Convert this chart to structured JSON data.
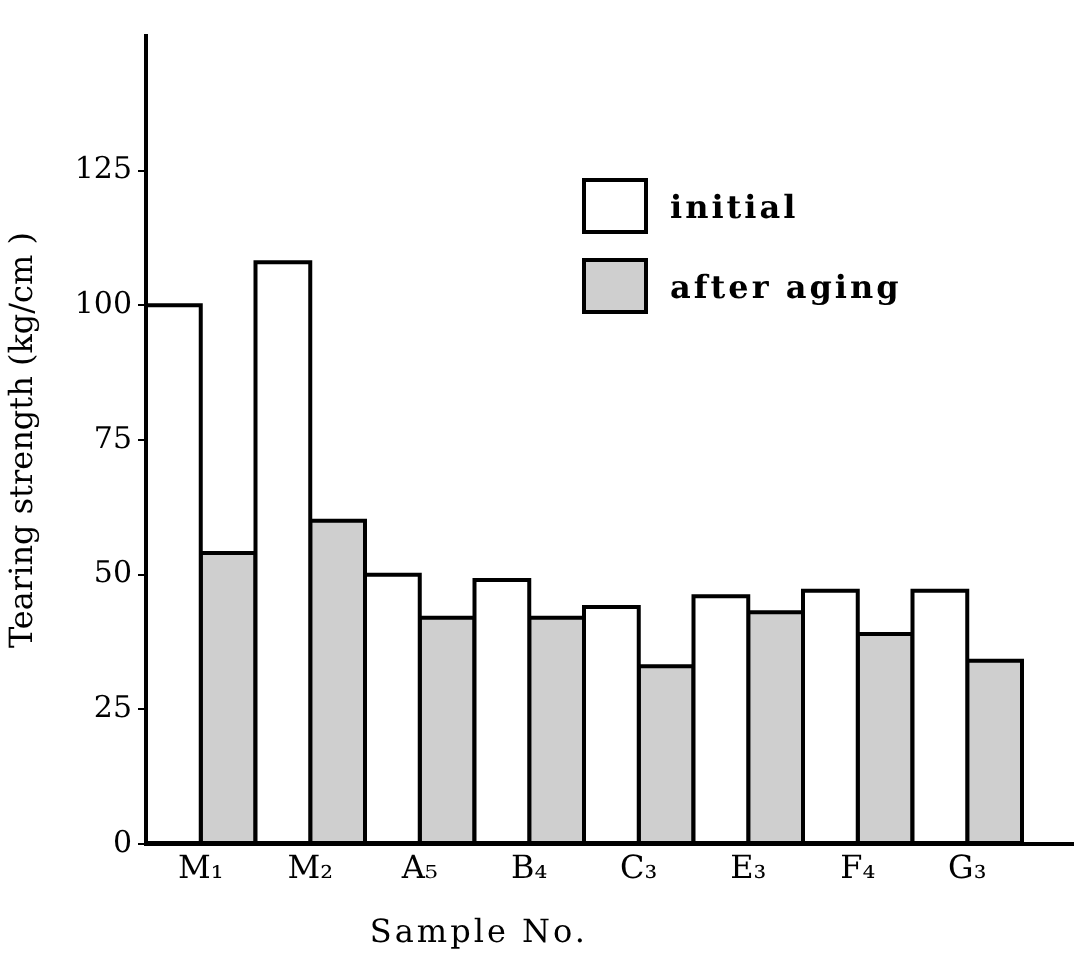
{
  "chart_data": {
    "type": "bar",
    "xlabel": "Sample No.",
    "ylabel": "Tearing strength (kg/cm )",
    "categories": [
      "M₁",
      "M₂",
      "A₅",
      "B₄",
      "C₃",
      "E₃",
      "F₄",
      "G₃"
    ],
    "series": [
      {
        "name": "initial",
        "color": "#ffffff",
        "values": [
          100,
          108,
          50,
          49,
          44,
          46,
          47,
          47
        ]
      },
      {
        "name": "after aging",
        "color": "#cfcfcf",
        "values": [
          54,
          60,
          42,
          42,
          33,
          43,
          39,
          34
        ]
      }
    ],
    "ylim": [
      0,
      150
    ],
    "yticks": [
      0,
      25,
      50,
      75,
      100,
      125
    ],
    "legend": "top right"
  }
}
